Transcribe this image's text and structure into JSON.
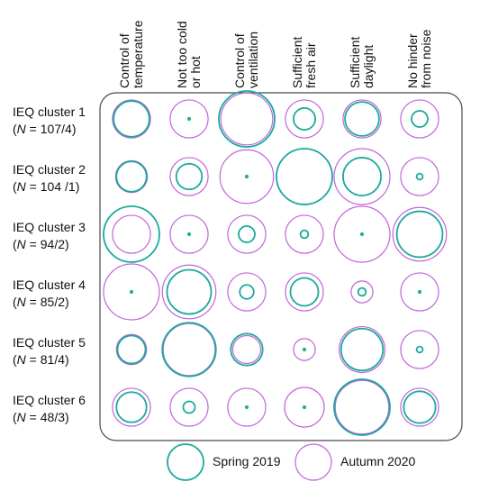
{
  "chart_data": {
    "type": "bubble-matrix",
    "columns": [
      [
        "Control of",
        "temperature"
      ],
      [
        "Not too cold",
        "or hot"
      ],
      [
        "Control of",
        "ventilation"
      ],
      [
        "Sufficient",
        "fresh air"
      ],
      [
        "Sufficient",
        "daylight"
      ],
      [
        "No hinder",
        "from noise"
      ]
    ],
    "rows": [
      {
        "name": "IEQ cluster 1",
        "n": "107/4"
      },
      {
        "name": "IEQ cluster 2",
        "n": "104 /1"
      },
      {
        "name": "IEQ cluster 3",
        "n": "94/2"
      },
      {
        "name": "IEQ cluster 4",
        "n": "85/2"
      },
      {
        "name": "IEQ cluster 5",
        "n": "81/4"
      },
      {
        "name": "IEQ cluster 6",
        "n": "48/3"
      }
    ],
    "n_prefix": "N",
    "size_units": "relative circle radius, 0 to 1",
    "series": [
      {
        "name": "Spring 2019",
        "color": "#1aaa9b",
        "values": [
          [
            0.64,
            0.02,
            1.0,
            0.39,
            0.61,
            0.29
          ],
          [
            0.54,
            0.46,
            0.02,
            1.0,
            0.68,
            0.11
          ],
          [
            1.0,
            0.02,
            0.29,
            0.14,
            0.02,
            0.82
          ],
          [
            0.02,
            0.79,
            0.25,
            0.5,
            0.14,
            0.02
          ],
          [
            0.5,
            0.96,
            0.57,
            0.02,
            0.75,
            0.11
          ],
          [
            0.54,
            0.21,
            0.02,
            0.02,
            1.0,
            0.57
          ]
        ]
      },
      {
        "name": "Autumn 2020",
        "color": "#c165d8",
        "values": [
          [
            0.68,
            0.68,
            0.93,
            0.68,
            0.68,
            0.68
          ],
          [
            0.57,
            0.68,
            0.96,
            1.0,
            1.0,
            0.68
          ],
          [
            0.68,
            0.68,
            0.68,
            0.68,
            1.0,
            0.96
          ],
          [
            1.0,
            0.96,
            0.68,
            0.68,
            0.39,
            0.68
          ],
          [
            0.54,
            0.93,
            0.5,
            0.39,
            0.82,
            0.68
          ],
          [
            0.68,
            0.68,
            0.68,
            0.71,
            0.96,
            0.68
          ]
        ]
      }
    ],
    "legend_position": "bottom",
    "grid": false
  }
}
